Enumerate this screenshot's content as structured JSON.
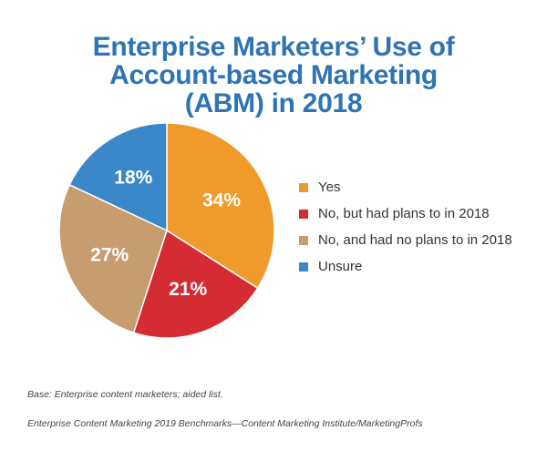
{
  "chart_data": {
    "type": "pie",
    "title_lines": [
      "Enterprise Marketers’ Use of",
      "Account-based Marketing",
      "(ABM) in 2018"
    ],
    "categories": [
      "Yes",
      "No, but had plans to in 2018",
      "No, and had no plans to in 2018",
      "Unsure"
    ],
    "values": [
      34,
      21,
      27,
      18
    ],
    "value_labels": [
      "34%",
      "21%",
      "27%",
      "18%"
    ],
    "colors": [
      "#ef9a2a",
      "#d52b32",
      "#c79c6e",
      "#3a88c9"
    ],
    "start_angle_deg": 0,
    "direction": "clockwise",
    "legend_position": "right"
  },
  "footnotes": {
    "base": "Base: Enterprise content marketers; aided list.",
    "source": "Enterprise Content Marketing 2019 Benchmarks—Content Marketing Institute/MarketingProfs"
  }
}
